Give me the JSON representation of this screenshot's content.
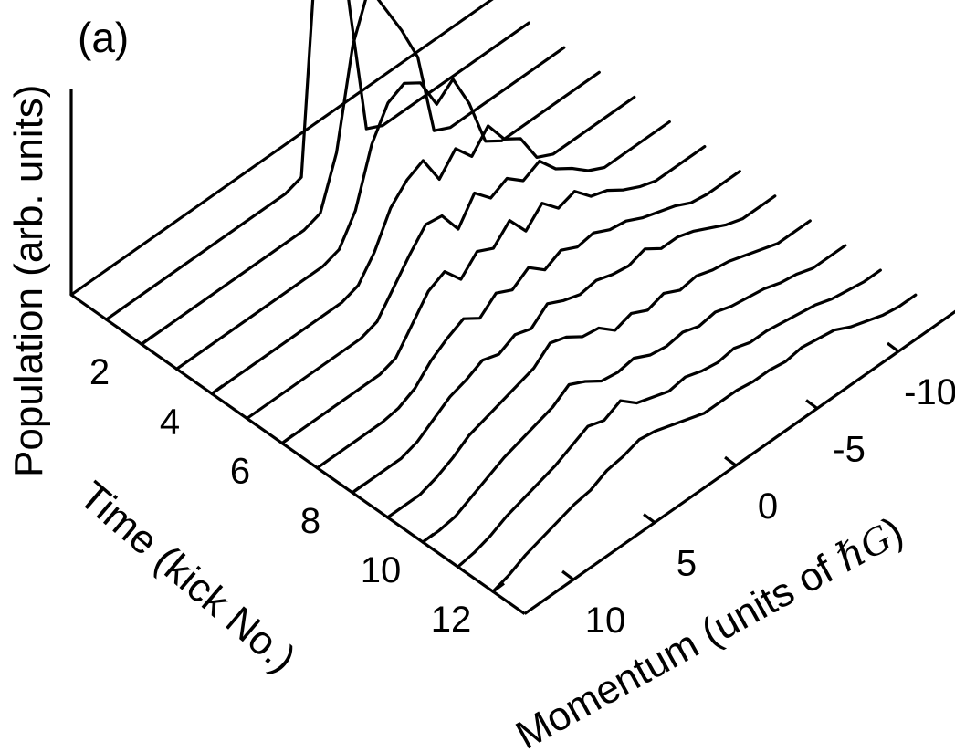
{
  "chart_data": {
    "type": "waterfall-line",
    "panel_label": "(a)",
    "zlabel": "Population (arb. units)",
    "time_axis": {
      "label": "Time (kick No.)",
      "ticks": [
        2,
        4,
        6,
        8,
        10,
        12
      ]
    },
    "momentum_axis": {
      "label": "Momentum (units of ",
      "label_symbol": "ℏG",
      "label_end": ")",
      "ticks": [
        10,
        5,
        0,
        -5,
        -10
      ],
      "range": [
        13,
        -13
      ]
    },
    "series": [
      {
        "kick": 0,
        "momentum": [
          13,
          12,
          11,
          10,
          9,
          8,
          7,
          6,
          5,
          4,
          3,
          2,
          1,
          0,
          -1,
          -2,
          -3,
          -4,
          -5,
          -6,
          -7,
          -8,
          -9,
          -10,
          -11,
          -12,
          -13
        ],
        "values": [
          0,
          0,
          0,
          0,
          0,
          0,
          0,
          0,
          0,
          0,
          0,
          0,
          0,
          0,
          0,
          0,
          0,
          0,
          0,
          0,
          0,
          0,
          0,
          0,
          0,
          0,
          0
        ]
      },
      {
        "kick": 1,
        "momentum": [
          13,
          12,
          11,
          10,
          9,
          8,
          7,
          6,
          5,
          4,
          3,
          2,
          1,
          0,
          -1,
          -2,
          -3,
          -4,
          -5,
          -6,
          -7,
          -8,
          -9,
          -10,
          -11,
          -12,
          -13
        ],
        "values": [
          0,
          0,
          0,
          0,
          0,
          0,
          0,
          0,
          0,
          0,
          0,
          0,
          0.02,
          0.9,
          1,
          0.5,
          0.03,
          0,
          0,
          0,
          0,
          0,
          0,
          0,
          0,
          0,
          0
        ]
      },
      {
        "kick": 2,
        "momentum": [
          13,
          12,
          11,
          10,
          9,
          8,
          7,
          6,
          5,
          4,
          3,
          2,
          1,
          0,
          -1,
          -2,
          -3,
          -4,
          -5,
          -6,
          -7,
          -8,
          -9,
          -10,
          -11,
          -12,
          -13
        ],
        "values": [
          0,
          0,
          0,
          0,
          0,
          0,
          0,
          0,
          0,
          0,
          0,
          0.02,
          0.2,
          0.55,
          0.72,
          0.6,
          0.48,
          0.34,
          0.03,
          0,
          0,
          0,
          0,
          0,
          0,
          0,
          0
        ]
      },
      {
        "kick": 3,
        "momentum": [
          13,
          12,
          11,
          10,
          9,
          8,
          7,
          6,
          5,
          4,
          3,
          2,
          1,
          0,
          -1,
          -2,
          -3,
          -4,
          -5,
          -6,
          -7,
          -8,
          -9,
          -10,
          -11,
          -12,
          -13
        ],
        "values": [
          0,
          0,
          0,
          0,
          0,
          0,
          0,
          0,
          0,
          0,
          0.02,
          0.12,
          0.32,
          0.43,
          0.46,
          0.42,
          0.3,
          0.35,
          0.22,
          0.04,
          0,
          0,
          0,
          0,
          0,
          0,
          0
        ]
      },
      {
        "kick": 4,
        "momentum": [
          13,
          12,
          11,
          10,
          9,
          8,
          7,
          6,
          5,
          4,
          3,
          2,
          1,
          0,
          -1,
          -2,
          -3,
          -4,
          -5,
          -6,
          -7,
          -8,
          -9,
          -10,
          -11,
          -12,
          -13
        ],
        "values": [
          0,
          0,
          0,
          0,
          0,
          0,
          0,
          0,
          0,
          0.02,
          0.1,
          0.22,
          0.28,
          0.31,
          0.2,
          0.27,
          0.2,
          0.27,
          0.18,
          0.14,
          0.03,
          0,
          0,
          0,
          0,
          0,
          0
        ]
      },
      {
        "kick": 5,
        "momentum": [
          13,
          12,
          11,
          10,
          9,
          8,
          7,
          6,
          5,
          4,
          3,
          2,
          1,
          0,
          -1,
          -2,
          -3,
          -4,
          -5,
          -6,
          -7,
          -8,
          -9,
          -10,
          -11,
          -12,
          -13
        ],
        "values": [
          0,
          0,
          0,
          0,
          0,
          0,
          0,
          0,
          0.02,
          0.1,
          0.18,
          0.25,
          0.24,
          0.15,
          0.24,
          0.18,
          0.21,
          0.16,
          0.19,
          0.12,
          0.08,
          0.03,
          0,
          0,
          0,
          0,
          0
        ]
      },
      {
        "kick": 6,
        "momentum": [
          13,
          12,
          11,
          10,
          9,
          8,
          7,
          6,
          5,
          4,
          3,
          2,
          1,
          0,
          -1,
          -2,
          -3,
          -4,
          -5,
          -6,
          -7,
          -8,
          -9,
          -10,
          -11,
          -12,
          -13
        ],
        "values": [
          0,
          0,
          0,
          0,
          0,
          0,
          0,
          0.02,
          0.1,
          0.18,
          0.21,
          0.14,
          0.2,
          0.17,
          0.23,
          0.15,
          0.21,
          0.15,
          0.17,
          0.11,
          0.09,
          0.05,
          0.02,
          0,
          0,
          0,
          0
        ]
      },
      {
        "kick": 7,
        "momentum": [
          13,
          12,
          11,
          10,
          9,
          8,
          7,
          6,
          5,
          4,
          3,
          2,
          1,
          0,
          -1,
          -2,
          -3,
          -4,
          -5,
          -6,
          -7,
          -8,
          -9,
          -10,
          -11,
          -12,
          -13
        ],
        "values": [
          0,
          0,
          0,
          0,
          0,
          0.01,
          0.04,
          0.1,
          0.14,
          0.17,
          0.13,
          0.18,
          0.15,
          0.19,
          0.14,
          0.17,
          0.14,
          0.15,
          0.12,
          0.11,
          0.08,
          0.06,
          0.04,
          0.01,
          0,
          0,
          0
        ]
      },
      {
        "kick": 8,
        "momentum": [
          13,
          12,
          11,
          10,
          9,
          8,
          7,
          6,
          5,
          4,
          3,
          2,
          1,
          0,
          -1,
          -2,
          -3,
          -4,
          -5,
          -6,
          -7,
          -8,
          -9,
          -10,
          -11,
          -12,
          -13
        ],
        "values": [
          0,
          0,
          0,
          0,
          0.02,
          0.06,
          0.1,
          0.12,
          0.15,
          0.13,
          0.16,
          0.14,
          0.19,
          0.16,
          0.14,
          0.15,
          0.13,
          0.12,
          0.14,
          0.1,
          0.1,
          0.08,
          0.05,
          0.02,
          0,
          0,
          0
        ]
      },
      {
        "kick": 9,
        "momentum": [
          13,
          12,
          11,
          10,
          9,
          8,
          7,
          6,
          5,
          4,
          3,
          2,
          1,
          0,
          -1,
          -2,
          -3,
          -4,
          -5,
          -6,
          -7,
          -8,
          -9,
          -10,
          -11,
          -12,
          -13
        ],
        "values": [
          0,
          0,
          0,
          0.02,
          0.05,
          0.09,
          0.11,
          0.13,
          0.15,
          0.17,
          0.22,
          0.2,
          0.16,
          0.15,
          0.1,
          0.12,
          0.09,
          0.11,
          0.08,
          0.09,
          0.07,
          0.06,
          0.04,
          0.02,
          0,
          0,
          0
        ]
      },
      {
        "kick": 10,
        "momentum": [
          13,
          12,
          11,
          10,
          9,
          8,
          7,
          6,
          5,
          4,
          3,
          2,
          1,
          0,
          -1,
          -2,
          -3,
          -4,
          -5,
          -6,
          -7,
          -8,
          -9,
          -10,
          -11,
          -12,
          -13
        ],
        "values": [
          0,
          0,
          0.01,
          0.04,
          0.07,
          0.1,
          0.12,
          0.14,
          0.16,
          0.2,
          0.17,
          0.13,
          0.12,
          0.13,
          0.1,
          0.09,
          0.1,
          0.08,
          0.09,
          0.07,
          0.06,
          0.05,
          0.03,
          0.02,
          0,
          0,
          0
        ]
      },
      {
        "kick": 11,
        "momentum": [
          13,
          12,
          11,
          10,
          9,
          8,
          7,
          6,
          5,
          4,
          3,
          2,
          1,
          0,
          -1,
          -2,
          -3,
          -4,
          -5,
          -6,
          -7,
          -8,
          -9,
          -10,
          -11,
          -12,
          -13
        ],
        "values": [
          0,
          0.01,
          0.03,
          0.06,
          0.08,
          0.1,
          0.12,
          0.15,
          0.18,
          0.16,
          0.19,
          0.14,
          0.12,
          0.1,
          0.11,
          0.09,
          0.08,
          0.09,
          0.07,
          0.07,
          0.06,
          0.05,
          0.04,
          0.02,
          0.01,
          0,
          0
        ]
      },
      {
        "kick": 12,
        "momentum": [
          13,
          12,
          11,
          10,
          9,
          8,
          7,
          6,
          5,
          4,
          3,
          2,
          1,
          0,
          -1,
          -2,
          -3,
          -4,
          -5,
          -6,
          -7,
          -8,
          -9,
          -10,
          -11,
          -12,
          -13
        ],
        "values": [
          0,
          0.02,
          0.05,
          0.07,
          0.09,
          0.11,
          0.12,
          0.15,
          0.16,
          0.18,
          0.17,
          0.15,
          0.13,
          0.11,
          0.11,
          0.11,
          0.1,
          0.1,
          0.09,
          0.1,
          0.09,
          0.08,
          0.05,
          0.03,
          0.01,
          0,
          0
        ]
      }
    ],
    "grid": false,
    "legend": "none"
  }
}
